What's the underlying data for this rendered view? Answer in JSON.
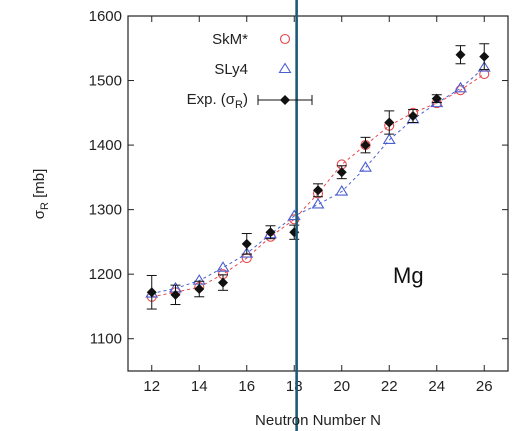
{
  "chart_data": {
    "type": "scatter",
    "title": "",
    "xlabel": "Neutron Number N",
    "ylabel": "σ",
    "ylabel_sub": "R",
    "ylabel_unit": " [mb]",
    "xlim": [
      11,
      27
    ],
    "ylim": [
      1050,
      1600
    ],
    "xticks": [
      12,
      14,
      16,
      18,
      20,
      22,
      24,
      26
    ],
    "yticks": [
      1100,
      1200,
      1300,
      1400,
      1500,
      1600
    ],
    "grid": false,
    "legend_position": "top-left",
    "annotation": "Mg",
    "vertical_line_x": 18.1,
    "series": [
      {
        "name": "SkM*",
        "marker": "circle",
        "color": "#e8474b",
        "x": [
          12,
          13,
          14,
          15,
          16,
          17,
          18,
          19,
          20,
          21,
          22,
          23,
          24,
          25,
          26
        ],
        "y": [
          1165,
          1172,
          1180,
          1200,
          1225,
          1258,
          1285,
          1325,
          1370,
          1400,
          1430,
          1450,
          1465,
          1485,
          1510
        ]
      },
      {
        "name": "SLy4",
        "marker": "triangle",
        "color": "#4a5fd0",
        "x": [
          12,
          13,
          14,
          15,
          16,
          17,
          18,
          19,
          20,
          21,
          22,
          23,
          24,
          25,
          26
        ],
        "y": [
          1170,
          1178,
          1190,
          1210,
          1232,
          1262,
          1290,
          1308,
          1328,
          1365,
          1408,
          1440,
          1465,
          1488,
          1520
        ]
      },
      {
        "name_main": "Exp. (σ",
        "name_sub": "R",
        "name_end": ")",
        "marker": "diamond",
        "color": "#111111",
        "x": [
          12,
          13,
          14,
          15,
          16,
          17,
          18,
          19,
          20,
          21,
          22,
          23,
          24,
          25,
          26
        ],
        "y": [
          1172,
          1168,
          1177,
          1187,
          1247,
          1265,
          1265,
          1330,
          1358,
          1400,
          1435,
          1445,
          1472,
          1540,
          1537
        ],
        "err": [
          26,
          15,
          12,
          12,
          16,
          10,
          11,
          10,
          10,
          12,
          18,
          10,
          6,
          14,
          20
        ]
      }
    ]
  }
}
